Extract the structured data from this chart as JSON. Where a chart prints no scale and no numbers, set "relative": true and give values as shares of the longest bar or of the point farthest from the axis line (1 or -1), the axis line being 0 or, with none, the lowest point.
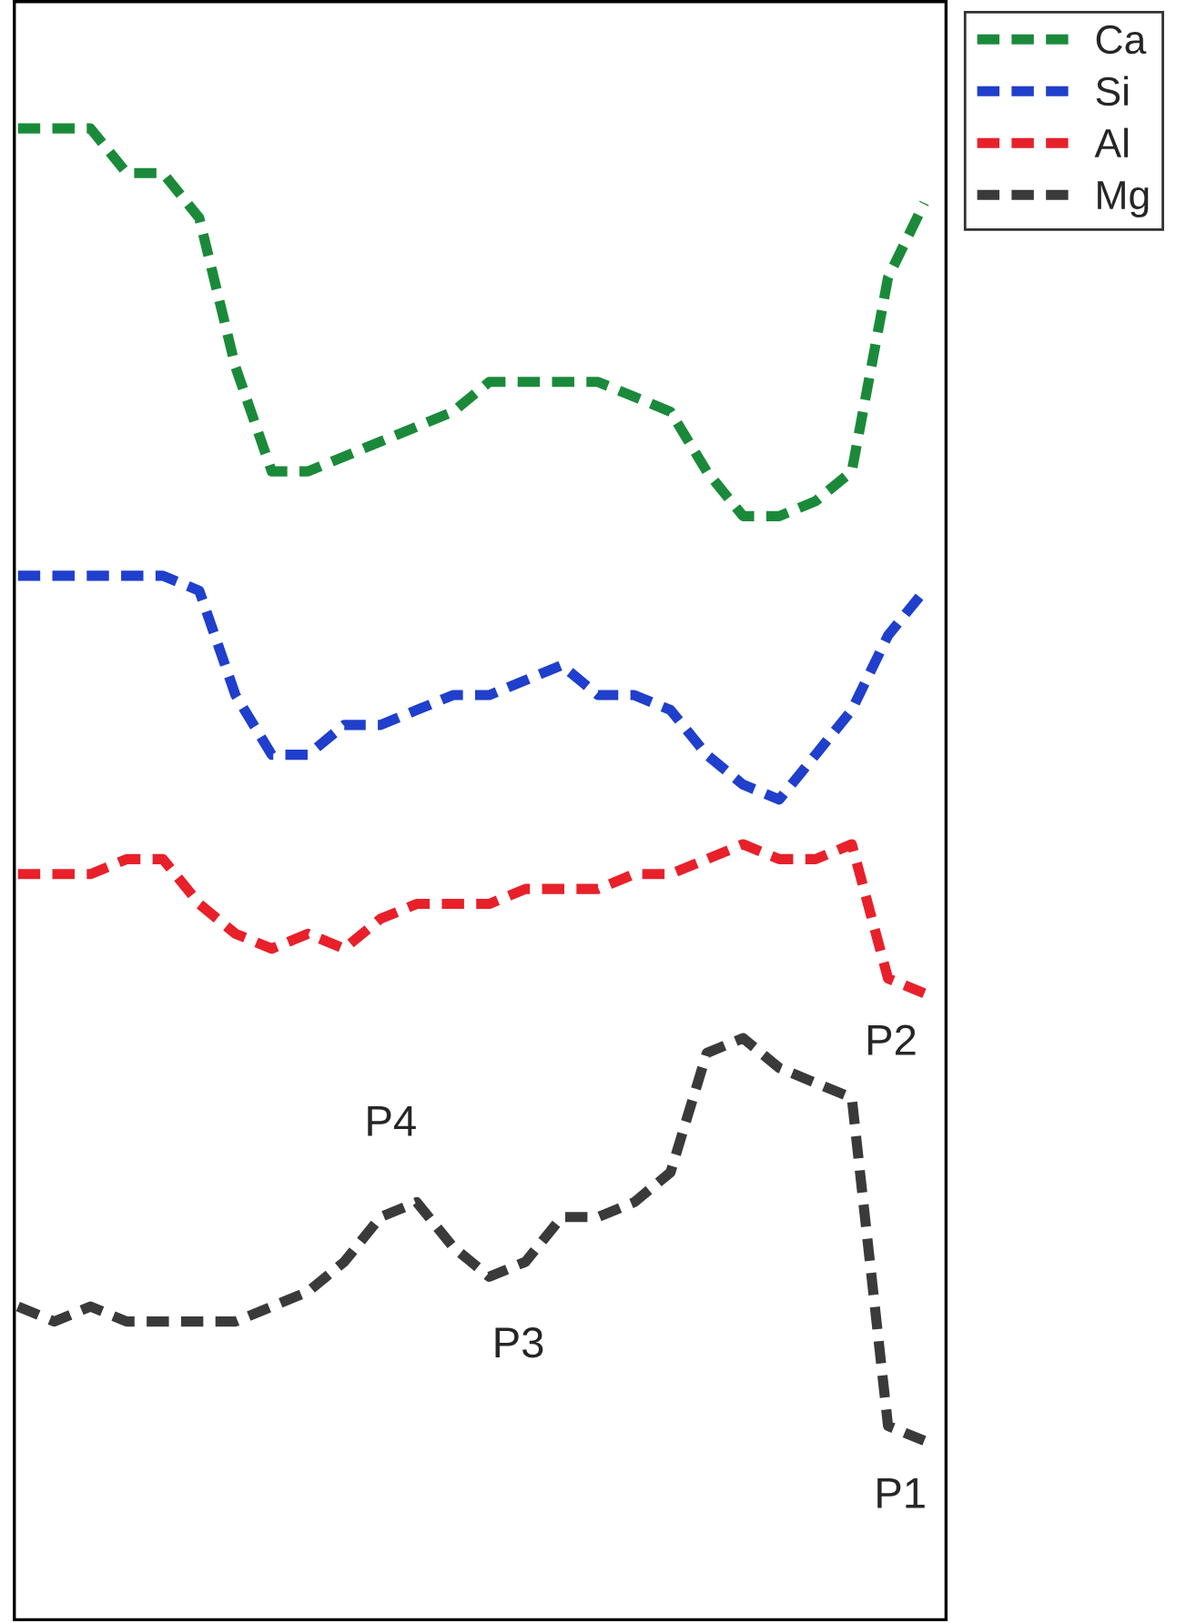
{
  "chart_data": {
    "type": "line",
    "relative": true,
    "legend": "top right",
    "line_style": "dashed",
    "categories": [
      null,
      null,
      null,
      null,
      null,
      null,
      null,
      null,
      null,
      null,
      null,
      null,
      null,
      null,
      null,
      null,
      null,
      null,
      null,
      null,
      null,
      null,
      null,
      null,
      null,
      null
    ],
    "series": [
      {
        "name": "Ca",
        "color": "#1a8a3a",
        "values": [
          1.0,
          1.0,
          1.0,
          0.97,
          0.97,
          0.94,
          0.84,
          0.77,
          0.77,
          0.78,
          0.79,
          0.8,
          0.81,
          0.83,
          0.83,
          0.83,
          0.83,
          0.82,
          0.81,
          0.77,
          0.74,
          0.74,
          0.75,
          0.77,
          0.9,
          0.95
        ]
      },
      {
        "name": "Si",
        "color": "#1f3fcc",
        "values": [
          0.7,
          0.7,
          0.7,
          0.7,
          0.7,
          0.69,
          0.62,
          0.58,
          0.58,
          0.6,
          0.6,
          0.61,
          0.62,
          0.62,
          0.63,
          0.64,
          0.62,
          0.62,
          0.61,
          0.58,
          0.56,
          0.55,
          0.58,
          0.61,
          0.66,
          0.69
        ]
      },
      {
        "name": "Al",
        "color": "#e8202a",
        "values": [
          0.5,
          0.5,
          0.5,
          0.51,
          0.51,
          0.48,
          0.46,
          0.45,
          0.46,
          0.45,
          0.47,
          0.48,
          0.48,
          0.48,
          0.49,
          0.49,
          0.49,
          0.5,
          0.5,
          0.51,
          0.52,
          0.51,
          0.51,
          0.52,
          0.43,
          0.42
        ]
      },
      {
        "name": "Mg",
        "color": "#3a3a3a",
        "values": [
          0.21,
          0.2,
          0.21,
          0.2,
          0.2,
          0.2,
          0.2,
          0.21,
          0.22,
          0.24,
          0.27,
          0.28,
          0.25,
          0.23,
          0.24,
          0.27,
          0.27,
          0.28,
          0.3,
          0.38,
          0.39,
          0.37,
          0.36,
          0.35,
          0.13,
          0.12
        ]
      }
    ],
    "annotations": [
      "P4",
      "P3",
      "P2",
      "P1"
    ]
  }
}
